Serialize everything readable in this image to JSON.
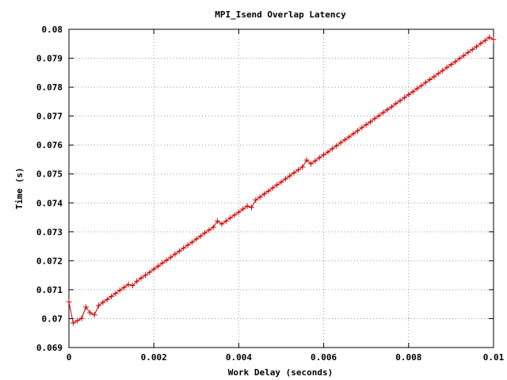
{
  "chart_data": {
    "type": "line",
    "title": "MPI_Isend Overlap Latency",
    "xlabel": "Work Delay (seconds)",
    "ylabel": "Time (s)",
    "xlim": [
      0,
      0.01
    ],
    "ylim": [
      0.069,
      0.08
    ],
    "xticks": [
      "0",
      "0.002",
      "0.004",
      "0.006",
      "0.008",
      "0.01"
    ],
    "yticks": [
      "0.069",
      "0.07",
      "0.071",
      "0.072",
      "0.073",
      "0.074",
      "0.075",
      "0.076",
      "0.077",
      "0.078",
      "0.079",
      "0.08"
    ],
    "grid": true,
    "marker": "plus",
    "line_color": "#cc0000",
    "series": [
      {
        "x": [
          0,
          0.0001,
          0.0002,
          0.0003,
          0.0004,
          0.0005,
          0.0006,
          0.0007,
          0.0008,
          0.0009,
          0.001,
          0.0011,
          0.0012,
          0.0013,
          0.0014,
          0.0015,
          0.0016,
          0.0017,
          0.0018,
          0.0019,
          0.002,
          0.0021,
          0.0022,
          0.0023,
          0.0024,
          0.0025,
          0.0026,
          0.0027,
          0.0028,
          0.0029,
          0.003,
          0.0031,
          0.0032,
          0.0033,
          0.0034,
          0.0035,
          0.0036,
          0.0037,
          0.0038,
          0.0039,
          0.004,
          0.0041,
          0.0042,
          0.0043,
          0.0044,
          0.0045,
          0.0046,
          0.0047,
          0.0048,
          0.0049,
          0.005,
          0.0051,
          0.0052,
          0.0053,
          0.0054,
          0.0055,
          0.0056,
          0.0057,
          0.0058,
          0.0059,
          0.006,
          0.0061,
          0.0062,
          0.0063,
          0.0064,
          0.0065,
          0.0066,
          0.0067,
          0.0068,
          0.0069,
          0.007,
          0.0071,
          0.0072,
          0.0073,
          0.0074,
          0.0075,
          0.0076,
          0.0077,
          0.0078,
          0.0079,
          0.008,
          0.0081,
          0.0082,
          0.0083,
          0.0084,
          0.0085,
          0.0086,
          0.0087,
          0.0088,
          0.0089,
          0.009,
          0.0091,
          0.0092,
          0.0093,
          0.0094,
          0.0095,
          0.0096,
          0.0097,
          0.0098,
          0.0099,
          0.01
        ],
        "y": [
          0.07058,
          0.06985,
          0.06993,
          0.07001,
          0.0704,
          0.0702,
          0.07013,
          0.07045,
          0.07056,
          0.07066,
          0.07077,
          0.07087,
          0.07098,
          0.07108,
          0.07118,
          0.07114,
          0.07129,
          0.0714,
          0.0715,
          0.0716,
          0.07171,
          0.07181,
          0.07192,
          0.07202,
          0.07212,
          0.07223,
          0.07233,
          0.07244,
          0.07254,
          0.07264,
          0.07275,
          0.07285,
          0.07296,
          0.07306,
          0.07316,
          0.07337,
          0.07327,
          0.07337,
          0.07348,
          0.07358,
          0.07368,
          0.07379,
          0.07389,
          0.07384,
          0.0741,
          0.0742,
          0.07431,
          0.07441,
          0.07452,
          0.07462,
          0.07472,
          0.07483,
          0.07493,
          0.07504,
          0.07514,
          0.07524,
          0.07548,
          0.07535,
          0.07545,
          0.07556,
          0.07566,
          0.07576,
          0.07587,
          0.07597,
          0.07608,
          0.07618,
          0.07628,
          0.07639,
          0.07649,
          0.0766,
          0.0767,
          0.0768,
          0.07691,
          0.07701,
          0.07712,
          0.07722,
          0.07732,
          0.07743,
          0.07753,
          0.07764,
          0.07774,
          0.07784,
          0.07795,
          0.07805,
          0.07816,
          0.07826,
          0.07836,
          0.07847,
          0.07857,
          0.07868,
          0.07878,
          0.07888,
          0.07899,
          0.07909,
          0.0792,
          0.0793,
          0.0794,
          0.07951,
          0.07961,
          0.07972,
          0.07965
        ]
      }
    ]
  }
}
